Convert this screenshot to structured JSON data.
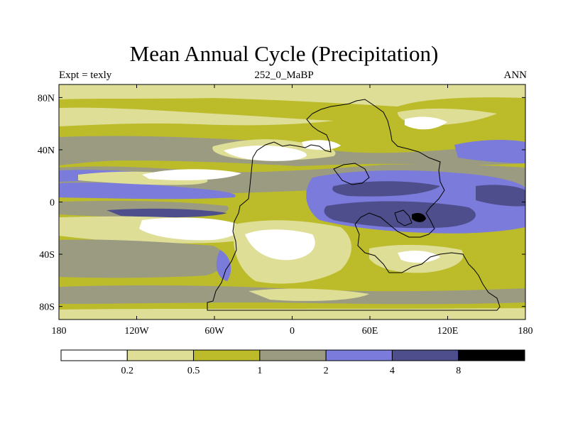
{
  "chart_data": {
    "type": "heatmap",
    "title": "Mean Annual Cycle (Precipitation)",
    "left_string": "Expt = texly",
    "center_string": "252_0_MaBP",
    "right_string": "ANN",
    "x_ticks": [
      "180",
      "120W",
      "60W",
      "0",
      "60E",
      "120E",
      "180"
    ],
    "x_tick_values": [
      -180,
      -120,
      -60,
      0,
      60,
      120,
      180
    ],
    "y_ticks": [
      "80N",
      "40N",
      "0",
      "40S",
      "80S"
    ],
    "y_tick_values": [
      80,
      40,
      0,
      -40,
      -80
    ],
    "xlim": [
      -180,
      180
    ],
    "ylim": [
      -90,
      90
    ],
    "colorbar": {
      "levels": [
        0.2,
        0.5,
        1,
        2,
        4,
        8
      ],
      "labels": [
        "0.2",
        "0.5",
        "1",
        "2",
        "4",
        "8"
      ],
      "colors": [
        "#ffffff",
        "#dede96",
        "#bcbc2a",
        "#9b9b82",
        "#7b7bdb",
        "#4e4e8c",
        "#000000"
      ]
    },
    "colors": {
      "c0": "#ffffff",
      "c1": "#dede96",
      "c2": "#bcbc2a",
      "c3": "#9b9b82",
      "c4": "#7b7bdb",
      "c5": "#4e4e8c",
      "c6": "#000000"
    }
  }
}
